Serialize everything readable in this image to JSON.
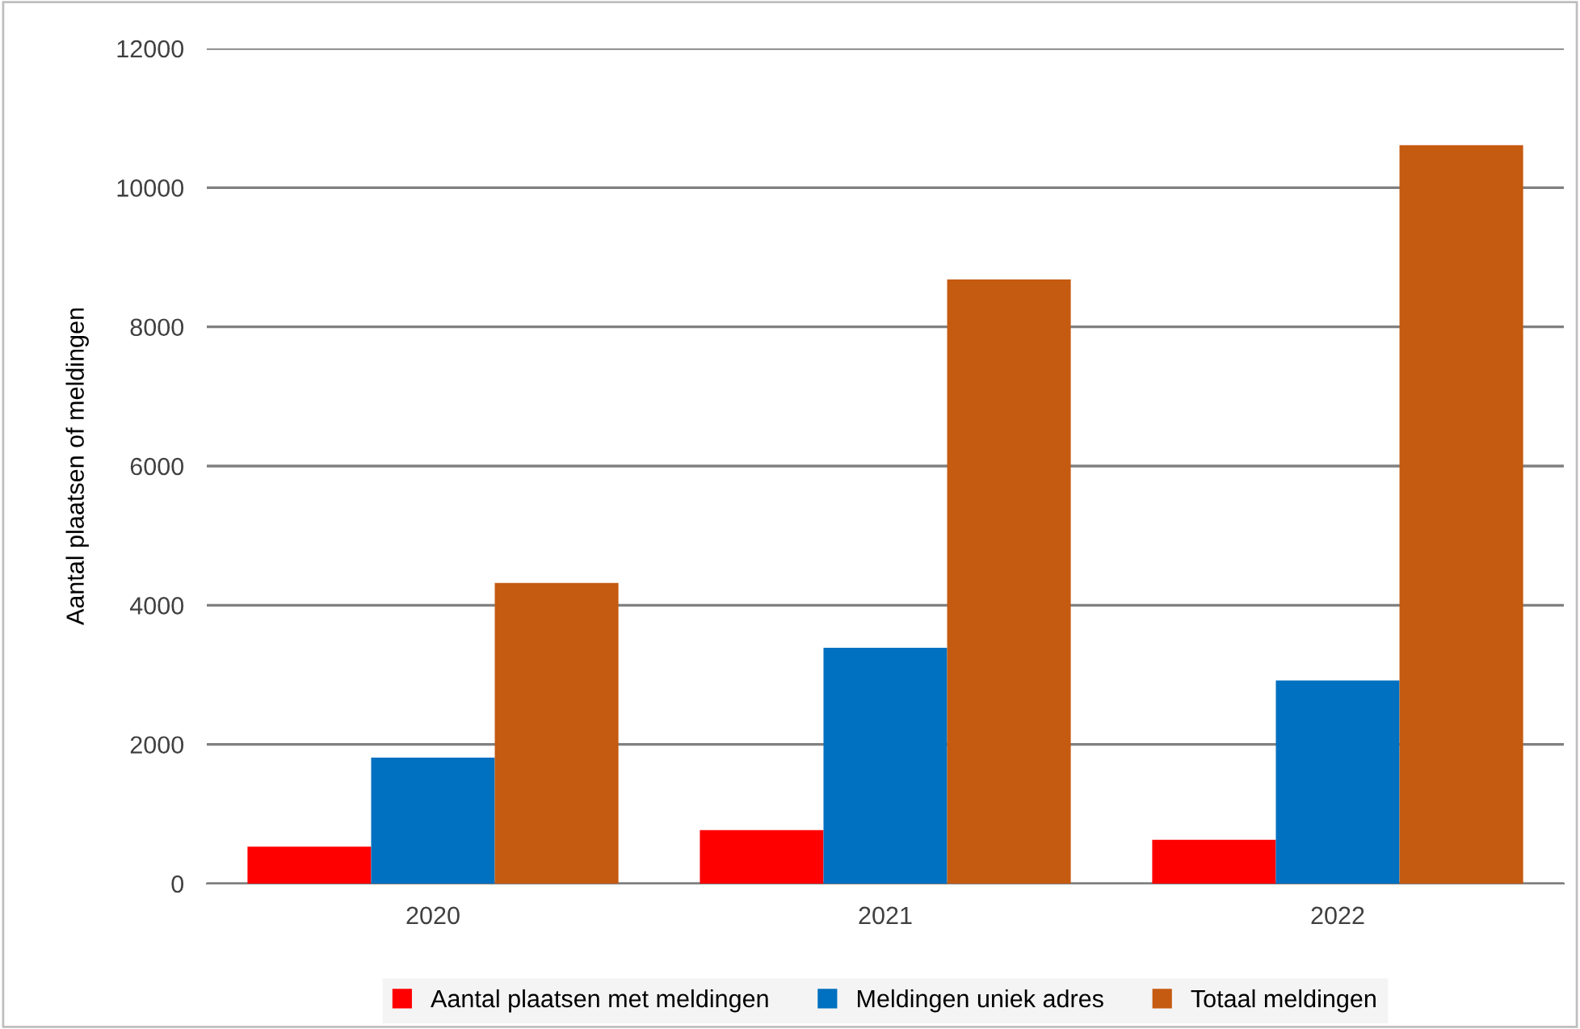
{
  "chart_data": {
    "type": "bar",
    "ylabel": "Aantal plaatsen of meldingen",
    "categories": [
      "2020",
      "2021",
      "2022"
    ],
    "series": [
      {
        "name": "Aantal plaatsen met meldingen",
        "color": "#ff0000",
        "values": [
          530,
          770,
          630
        ]
      },
      {
        "name": "Meldingen uniek adres",
        "color": "#0070c0",
        "values": [
          1810,
          3390,
          2920
        ]
      },
      {
        "name": "Totaal meldingen",
        "color": "#c55a11",
        "values": [
          4320,
          8680,
          10610
        ]
      }
    ],
    "ylim": [
      0,
      12000
    ],
    "yticks": [
      0,
      2000,
      4000,
      6000,
      8000,
      10000,
      12000
    ],
    "grid": "y",
    "legend": "bottom"
  }
}
